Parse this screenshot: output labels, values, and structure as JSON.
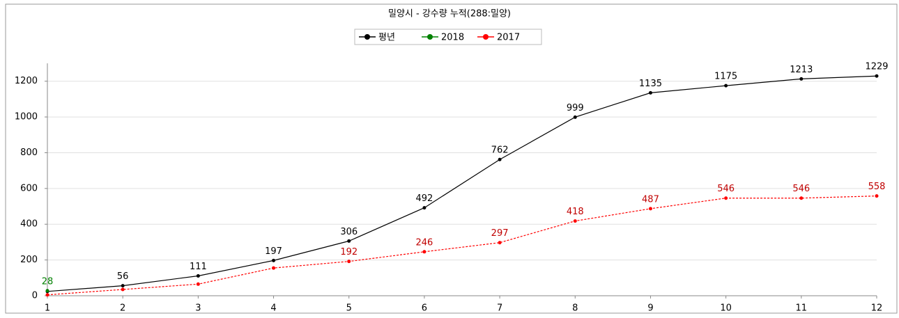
{
  "chart_data": {
    "type": "line",
    "title": "밀양시 - 강수량 누적(288:밀양)",
    "x": [
      1,
      2,
      3,
      4,
      5,
      6,
      7,
      8,
      9,
      10,
      11,
      12
    ],
    "series": [
      {
        "name": "평년",
        "color": "#000000",
        "label_color": "#000000",
        "dashed": false,
        "values": [
          24,
          56,
          111,
          197,
          306,
          492,
          762,
          999,
          1135,
          1175,
          1213,
          1229
        ],
        "value_labels": [
          null,
          "56",
          "111",
          "197",
          "306",
          "492",
          "762",
          "999",
          "1135",
          "1175",
          "1213",
          "1229"
        ]
      },
      {
        "name": "2018",
        "color": "#008000",
        "label_color": "#008000",
        "dashed": false,
        "values": [
          28,
          null,
          null,
          null,
          null,
          null,
          null,
          null,
          null,
          null,
          null,
          null
        ],
        "value_labels": [
          "28",
          null,
          null,
          null,
          null,
          null,
          null,
          null,
          null,
          null,
          null,
          null
        ]
      },
      {
        "name": "2017",
        "color": "#ff0000",
        "label_color": "#c00000",
        "dashed": true,
        "values": [
          5,
          35,
          65,
          155,
          192,
          246,
          297,
          418,
          487,
          546,
          546,
          558
        ],
        "value_labels": [
          null,
          null,
          null,
          null,
          "192",
          "246",
          "297",
          "418",
          "487",
          "546",
          "546",
          "558"
        ]
      }
    ],
    "xlim": [
      1,
      12
    ],
    "xticks": [
      1,
      2,
      3,
      4,
      5,
      6,
      7,
      8,
      9,
      10,
      11,
      12
    ],
    "ylim": [
      0,
      1300
    ],
    "yticks": [
      0,
      200,
      400,
      600,
      800,
      1000,
      1200
    ],
    "grid": true,
    "legend": "top"
  }
}
